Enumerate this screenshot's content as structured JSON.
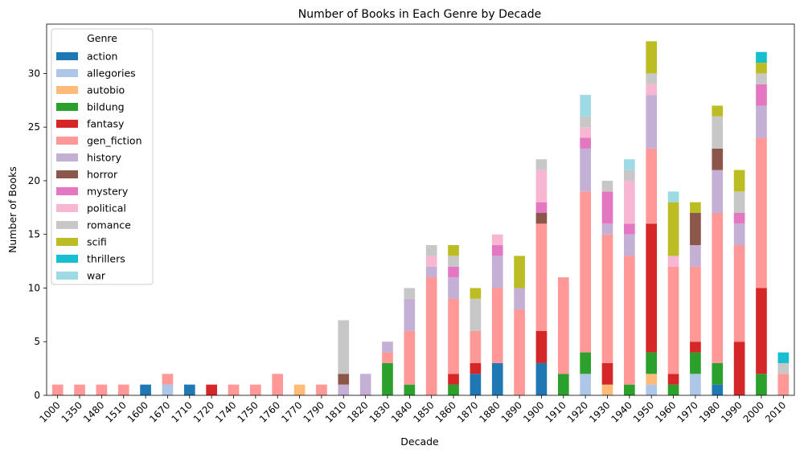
{
  "chart_data": {
    "type": "bar",
    "stacked": true,
    "title": "Number of Books in Each Genre by Decade",
    "xlabel": "Decade",
    "ylabel": "Number of Books",
    "ylim": [
      0,
      34.6
    ],
    "yticks": [
      0,
      5,
      10,
      15,
      20,
      25,
      30
    ],
    "grid": false,
    "legend_title": "Genre",
    "legend_position": "top-left",
    "categories": [
      "1000",
      "1350",
      "1480",
      "1510",
      "1600",
      "1670",
      "1710",
      "1720",
      "1740",
      "1750",
      "1760",
      "1770",
      "1790",
      "1810",
      "1820",
      "1830",
      "1840",
      "1850",
      "1860",
      "1870",
      "1880",
      "1890",
      "1900",
      "1910",
      "1920",
      "1930",
      "1940",
      "1950",
      "1960",
      "1970",
      "1980",
      "1990",
      "2000",
      "2010"
    ],
    "series": [
      {
        "name": "action",
        "color": "#1f77b4",
        "values": [
          0,
          0,
          0,
          0,
          1,
          0,
          1,
          0,
          0,
          0,
          0,
          0,
          0,
          0,
          0,
          0,
          0,
          0,
          0,
          2,
          3,
          0,
          3,
          0,
          0,
          0,
          0,
          0,
          0,
          0,
          1,
          0,
          0,
          0
        ]
      },
      {
        "name": "allegories",
        "color": "#aec7e8",
        "values": [
          0,
          0,
          0,
          0,
          0,
          1,
          0,
          0,
          0,
          0,
          0,
          0,
          0,
          0,
          0,
          0,
          0,
          0,
          0,
          0,
          0,
          0,
          0,
          0,
          2,
          0,
          0,
          1,
          0,
          2,
          0,
          0,
          0,
          0
        ]
      },
      {
        "name": "autobio",
        "color": "#ffbb78",
        "values": [
          0,
          0,
          0,
          0,
          0,
          0,
          0,
          0,
          0,
          0,
          0,
          1,
          0,
          0,
          0,
          0,
          0,
          0,
          0,
          0,
          0,
          0,
          0,
          0,
          0,
          1,
          0,
          1,
          0,
          0,
          0,
          0,
          0,
          0
        ]
      },
      {
        "name": "bildung",
        "color": "#2ca02c",
        "values": [
          0,
          0,
          0,
          0,
          0,
          0,
          0,
          0,
          0,
          0,
          0,
          0,
          0,
          0,
          0,
          3,
          1,
          0,
          1,
          0,
          0,
          0,
          0,
          2,
          2,
          0,
          1,
          2,
          1,
          2,
          2,
          0,
          2,
          0
        ]
      },
      {
        "name": "fantasy",
        "color": "#d62728",
        "values": [
          0,
          0,
          0,
          0,
          0,
          0,
          0,
          1,
          0,
          0,
          0,
          0,
          0,
          0,
          0,
          0,
          0,
          0,
          1,
          1,
          0,
          0,
          3,
          0,
          0,
          2,
          0,
          12,
          1,
          1,
          0,
          5,
          8,
          0
        ]
      },
      {
        "name": "gen_fiction",
        "color": "#ff9896",
        "values": [
          1,
          1,
          1,
          1,
          0,
          1,
          0,
          0,
          1,
          1,
          2,
          0,
          1,
          0,
          0,
          1,
          5,
          11,
          7,
          3,
          7,
          8,
          10,
          9,
          15,
          12,
          12,
          7,
          10,
          7,
          14,
          9,
          14,
          2
        ]
      },
      {
        "name": "history",
        "color": "#c5b0d5",
        "values": [
          0,
          0,
          0,
          0,
          0,
          0,
          0,
          0,
          0,
          0,
          0,
          0,
          0,
          1,
          2,
          1,
          3,
          1,
          2,
          0,
          3,
          2,
          0,
          0,
          4,
          1,
          2,
          5,
          0,
          2,
          4,
          2,
          3,
          0
        ]
      },
      {
        "name": "horror",
        "color": "#8c564b",
        "values": [
          0,
          0,
          0,
          0,
          0,
          0,
          0,
          0,
          0,
          0,
          0,
          0,
          0,
          1,
          0,
          0,
          0,
          0,
          0,
          0,
          0,
          0,
          1,
          0,
          0,
          0,
          0,
          0,
          0,
          3,
          2,
          0,
          0,
          0
        ]
      },
      {
        "name": "mystery",
        "color": "#e377c2",
        "values": [
          0,
          0,
          0,
          0,
          0,
          0,
          0,
          0,
          0,
          0,
          0,
          0,
          0,
          0,
          0,
          0,
          0,
          0,
          1,
          0,
          1,
          0,
          1,
          0,
          1,
          3,
          1,
          0,
          0,
          0,
          0,
          1,
          2,
          0
        ]
      },
      {
        "name": "political",
        "color": "#f7b6d2",
        "values": [
          0,
          0,
          0,
          0,
          0,
          0,
          0,
          0,
          0,
          0,
          0,
          0,
          0,
          0,
          0,
          0,
          0,
          1,
          0,
          0,
          1,
          0,
          3,
          0,
          1,
          0,
          4,
          1,
          1,
          0,
          0,
          0,
          0,
          0
        ]
      },
      {
        "name": "romance",
        "color": "#c7c7c7",
        "values": [
          0,
          0,
          0,
          0,
          0,
          0,
          0,
          0,
          0,
          0,
          0,
          0,
          0,
          5,
          0,
          0,
          1,
          1,
          1,
          3,
          0,
          0,
          1,
          0,
          1,
          1,
          1,
          1,
          0,
          0,
          3,
          2,
          1,
          1
        ]
      },
      {
        "name": "scifi",
        "color": "#bcbd22",
        "values": [
          0,
          0,
          0,
          0,
          0,
          0,
          0,
          0,
          0,
          0,
          0,
          0,
          0,
          0,
          0,
          0,
          0,
          0,
          1,
          1,
          0,
          3,
          0,
          0,
          0,
          0,
          0,
          3,
          5,
          1,
          1,
          2,
          1,
          0
        ]
      },
      {
        "name": "thrillers",
        "color": "#17becf",
        "values": [
          0,
          0,
          0,
          0,
          0,
          0,
          0,
          0,
          0,
          0,
          0,
          0,
          0,
          0,
          0,
          0,
          0,
          0,
          0,
          0,
          0,
          0,
          0,
          0,
          0,
          0,
          0,
          0,
          0,
          0,
          0,
          0,
          1,
          1
        ]
      },
      {
        "name": "war",
        "color": "#9edae5",
        "values": [
          0,
          0,
          0,
          0,
          0,
          0,
          0,
          0,
          0,
          0,
          0,
          0,
          0,
          0,
          0,
          0,
          0,
          0,
          0,
          0,
          0,
          0,
          0,
          0,
          2,
          0,
          1,
          0,
          1,
          0,
          0,
          0,
          0,
          0
        ]
      }
    ]
  }
}
